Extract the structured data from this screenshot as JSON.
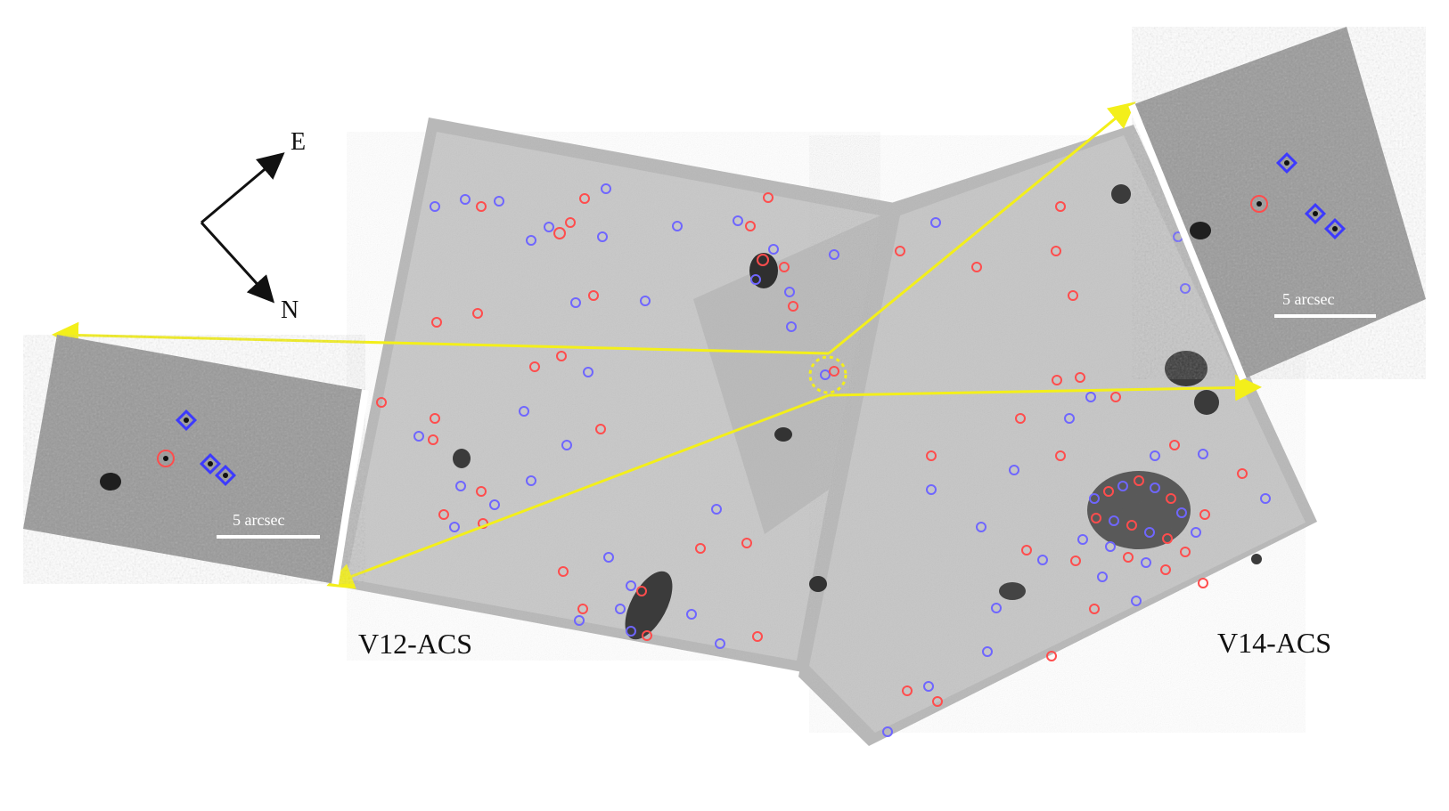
{
  "compass": {
    "east_label": "E",
    "north_label": "N"
  },
  "panels": {
    "left_field_label": "V12-ACS",
    "right_field_label": "V14-ACS"
  },
  "insets": {
    "left_scale_label": "5 arcsec",
    "right_scale_label": "5 arcsec"
  },
  "colors": {
    "background": "#ffffff",
    "field_gray": "#c9c9c9",
    "field_border": "#b8b8b8",
    "inset_gray": "#9a9a9a",
    "source_red": "#ff4d4d",
    "source_blue": "#6f66ff",
    "annotation_yellow": "#f3ef1a",
    "compass_black": "#111111",
    "scale_white": "#ffffff"
  }
}
